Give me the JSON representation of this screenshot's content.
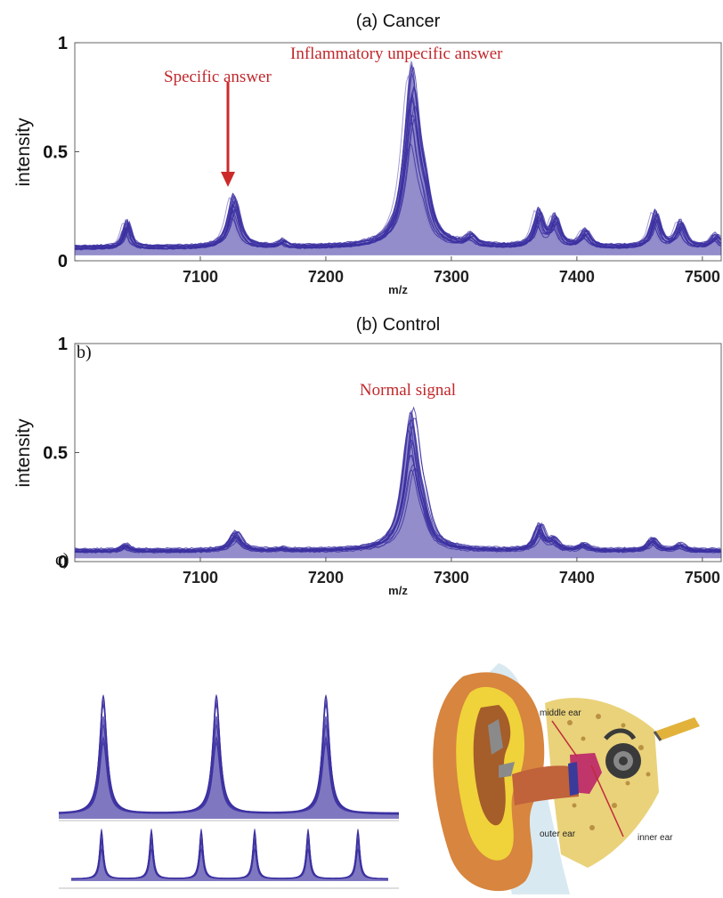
{
  "chart_data": [
    {
      "type": "line",
      "title": "(a) Cancer",
      "xlabel": "m/z",
      "ylabel": "intensity",
      "xlim": [
        7000,
        7515
      ],
      "ylim": [
        0,
        1
      ],
      "xticks": [
        7100,
        7200,
        7300,
        7400,
        7500
      ],
      "yticks": [
        {
          "v": 0,
          "label": "0"
        },
        {
          "v": 0.5,
          "label": "0.5"
        },
        {
          "v": 1,
          "label": "1"
        }
      ],
      "baseline": 0.06,
      "peaks": [
        {
          "x": 7041,
          "h": 0.13,
          "w": 3
        },
        {
          "x": 7126,
          "h": 0.25,
          "w": 5
        },
        {
          "x": 7165,
          "h": 0.03,
          "w": 3
        },
        {
          "x": 7268,
          "h": 0.83,
          "w": 7
        },
        {
          "x": 7278,
          "h": 0.14,
          "w": 5
        },
        {
          "x": 7315,
          "h": 0.05,
          "w": 4
        },
        {
          "x": 7369,
          "h": 0.17,
          "w": 4
        },
        {
          "x": 7382,
          "h": 0.14,
          "w": 4
        },
        {
          "x": 7406,
          "h": 0.08,
          "w": 4
        },
        {
          "x": 7462,
          "h": 0.17,
          "w": 4
        },
        {
          "x": 7482,
          "h": 0.12,
          "w": 4
        },
        {
          "x": 7510,
          "h": 0.06,
          "w": 4
        }
      ],
      "annotations": [
        {
          "text": "Specific answer",
          "x": 7126,
          "y": 0.43
        },
        {
          "text": "Inflammatory unpecific answer",
          "x": 7265,
          "y": 0.95
        }
      ]
    },
    {
      "type": "line",
      "title": "(b) Control",
      "xlabel": "m/z",
      "ylabel": "intensity",
      "xlim": [
        7000,
        7515
      ],
      "ylim": [
        0,
        1
      ],
      "xticks": [
        7100,
        7200,
        7300,
        7400,
        7500
      ],
      "yticks": [
        {
          "v": 0,
          "label": "0"
        },
        {
          "v": 0.5,
          "label": "0.5"
        },
        {
          "v": 1,
          "label": "1"
        }
      ],
      "baseline": 0.05,
      "peaks": [
        {
          "x": 7040,
          "h": 0.03,
          "w": 3
        },
        {
          "x": 7128,
          "h": 0.09,
          "w": 5
        },
        {
          "x": 7165,
          "h": 0.01,
          "w": 3
        },
        {
          "x": 7268,
          "h": 0.63,
          "w": 7
        },
        {
          "x": 7278,
          "h": 0.08,
          "w": 5
        },
        {
          "x": 7370,
          "h": 0.12,
          "w": 4
        },
        {
          "x": 7381,
          "h": 0.05,
          "w": 4
        },
        {
          "x": 7405,
          "h": 0.03,
          "w": 4
        },
        {
          "x": 7460,
          "h": 0.06,
          "w": 4
        },
        {
          "x": 7482,
          "h": 0.03,
          "w": 4
        }
      ],
      "annotations": [
        {
          "text": "Normal signal",
          "x": 7268,
          "y": 0.78
        }
      ]
    }
  ],
  "corner_letters": {
    "b": "b)",
    "c": "c)"
  },
  "ear_labels": {
    "middle": "middle ear",
    "outer": "outer ear",
    "inner": "inner ear"
  },
  "colors": {
    "spectrum": "#3b2fa0",
    "spectrum_light": "#8d84c9",
    "annotation": "#c0282c",
    "arrow": "#cc2a2a"
  }
}
